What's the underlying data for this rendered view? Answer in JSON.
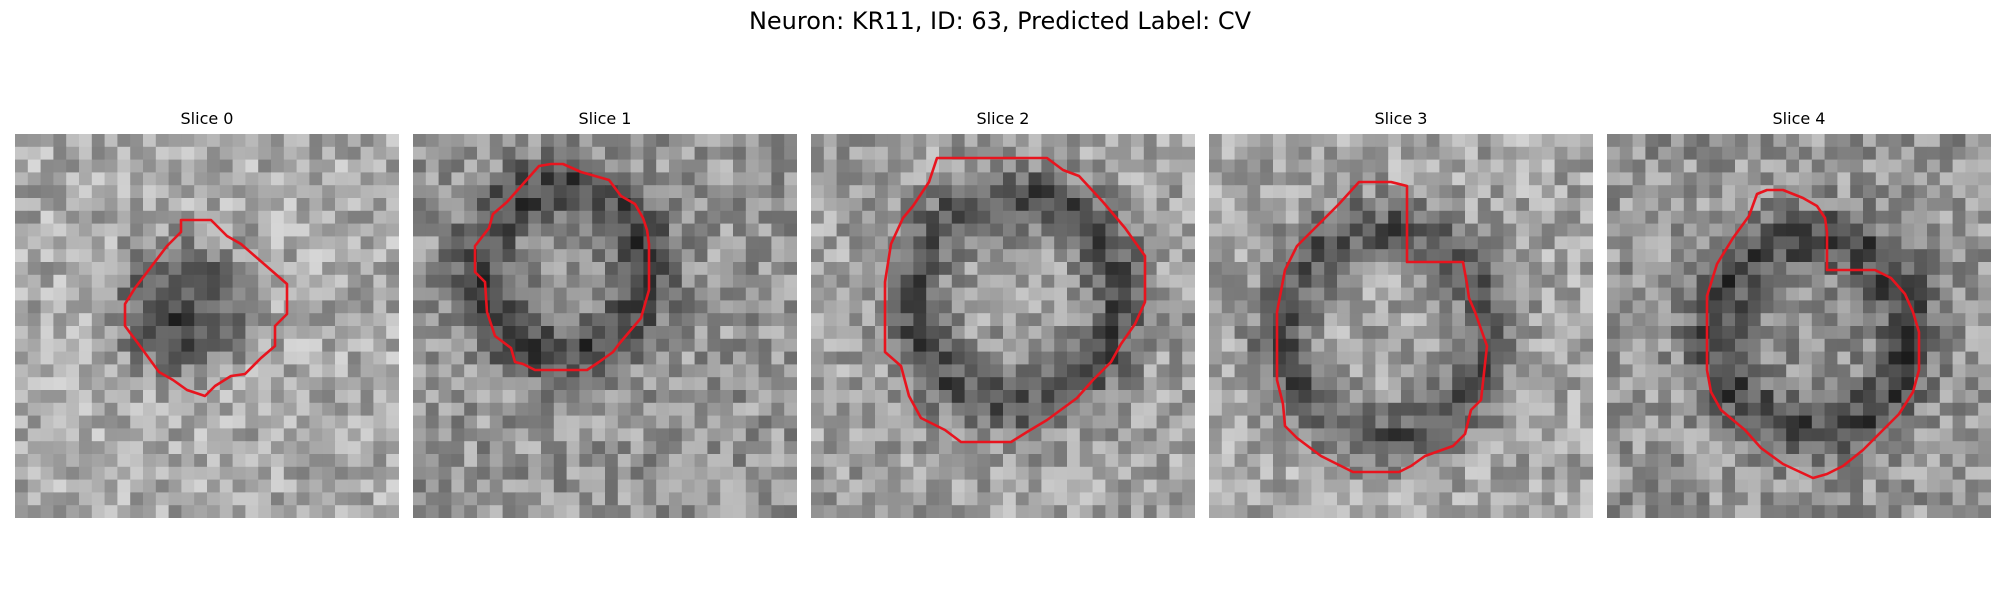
{
  "figure": {
    "title": "Neuron: KR11, ID: 63, Predicted Label: CV"
  },
  "colors": {
    "contour": "#e8141e",
    "background": "#ffffff"
  },
  "panels": [
    {
      "title": "Slice 0",
      "image": "grayscale-em-slice-with-red-contour"
    },
    {
      "title": "Slice 1",
      "image": "grayscale-em-slice-with-red-contour"
    },
    {
      "title": "Slice 2",
      "image": "grayscale-em-slice-with-red-contour"
    },
    {
      "title": "Slice 3",
      "image": "grayscale-em-slice-with-red-contour"
    },
    {
      "title": "Slice 4",
      "image": "grayscale-em-slice-with-red-contour"
    }
  ]
}
